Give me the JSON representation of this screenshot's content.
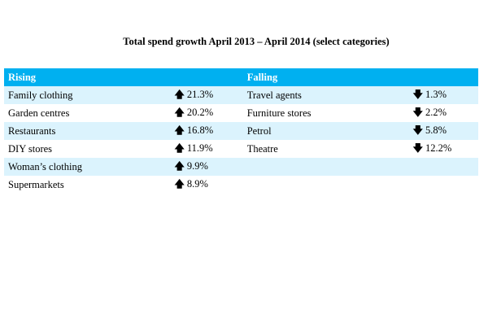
{
  "title": "Total spend growth April 2013 – April 2014 (select categories)",
  "headers": {
    "rising": "Rising",
    "falling": "Falling"
  },
  "arrows": {
    "up": "🡅",
    "down": "🡇"
  },
  "colors": {
    "header_bg": "#00b0f0",
    "row_alt": "#dbf3fd"
  },
  "rising": [
    {
      "label": "Family clothing",
      "value": "21.3%"
    },
    {
      "label": "Garden centres",
      "value": "20.2%"
    },
    {
      "label": "Restaurants",
      "value": "16.8%"
    },
    {
      "label": "DIY stores",
      "value": "11.9%"
    },
    {
      "label": "Woman’s clothing",
      "value": "9.9%"
    },
    {
      "label": "Supermarkets",
      "value": "8.9%"
    }
  ],
  "falling": [
    {
      "label": "Travel agents",
      "value": "1.3%"
    },
    {
      "label": "Furniture stores",
      "value": "2.2%"
    },
    {
      "label": "Petrol",
      "value": "5.8%"
    },
    {
      "label": "Theatre",
      "value": "12.2%"
    }
  ]
}
